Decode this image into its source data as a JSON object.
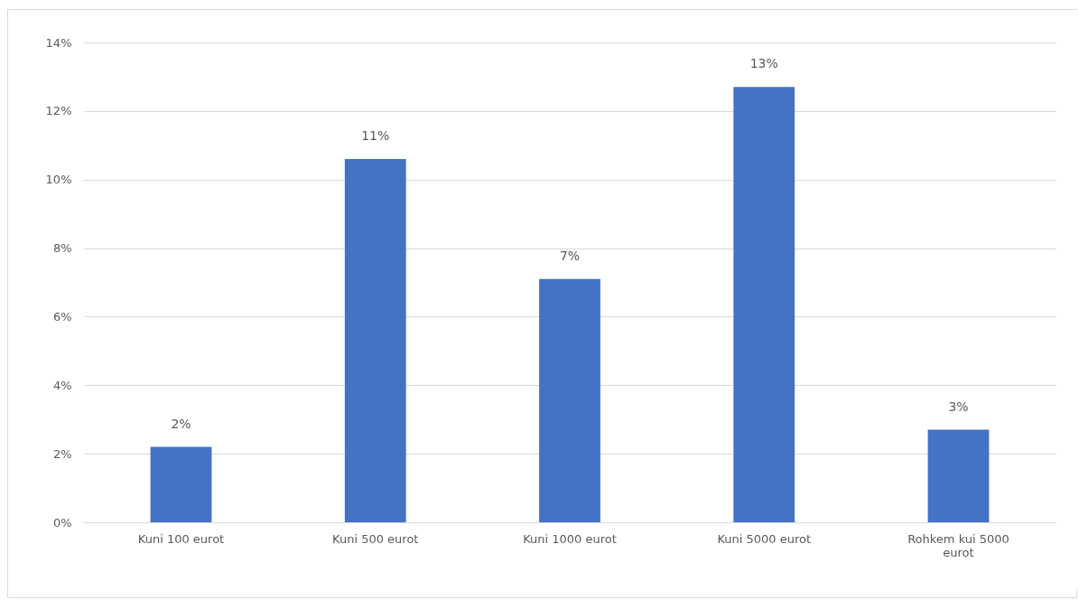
{
  "chart_data": {
    "type": "bar",
    "categories": [
      "Kuni 100 eurot",
      "Kuni 500 eurot",
      "Kuni 1000 eurot",
      "Kuni 5000 eurot",
      "Rohkem kui 5000 eurot"
    ],
    "values": [
      2.2,
      10.6,
      7.1,
      12.7,
      2.7
    ],
    "value_labels": [
      "2%",
      "11%",
      "7%",
      "13%",
      "3%"
    ],
    "color": "#4472c4",
    "ylim": [
      0,
      14
    ],
    "yticks": [
      {
        "value": 0,
        "label": "0%"
      },
      {
        "value": 2,
        "label": "2%"
      },
      {
        "value": 4,
        "label": "4%"
      },
      {
        "value": 6,
        "label": "6%"
      },
      {
        "value": 8,
        "label": "8%"
      },
      {
        "value": 10,
        "label": "10%"
      },
      {
        "value": 12,
        "label": "12%"
      },
      {
        "value": 14,
        "label": "14%"
      }
    ],
    "grid": "y"
  }
}
